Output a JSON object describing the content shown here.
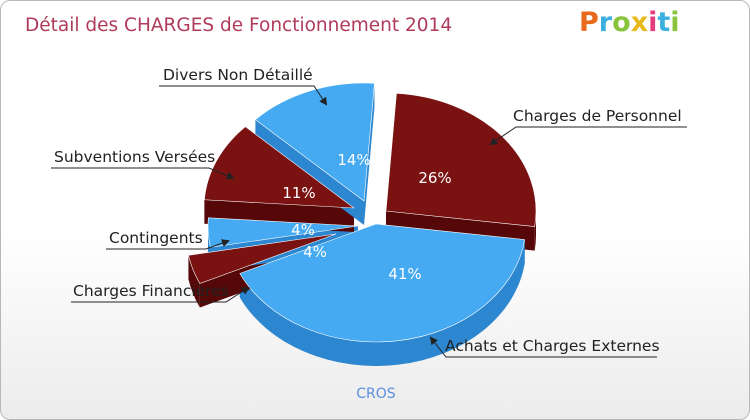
{
  "title": "Détail des CHARGES de Fonctionnement 2014",
  "logo": {
    "text": "Proxiti",
    "colors": [
      "#e86a1c",
      "#3bb0e0",
      "#8ac43f",
      "#e8b81c",
      "#e43c7c",
      "#3bb0e0",
      "#8ac43f"
    ]
  },
  "subtitle": "CROS",
  "colors": {
    "blue": "#45aaf2",
    "blue_side": "#2c86d0",
    "red": "#7a1212",
    "red_side": "#560808"
  },
  "chart_data": {
    "type": "pie",
    "title": "Détail des CHARGES de Fonctionnement 2014",
    "subtitle": "CROS",
    "slices": [
      {
        "label": "Charges de Personnel",
        "value": 26,
        "display": "26%",
        "color": "red"
      },
      {
        "label": "Achats et Charges Externes",
        "value": 41,
        "display": "41%",
        "color": "blue"
      },
      {
        "label": "Charges Financières",
        "value": 4,
        "display": "4%",
        "color": "red"
      },
      {
        "label": "Contingents",
        "value": 4,
        "display": "4%",
        "color": "blue"
      },
      {
        "label": "Subventions Versées",
        "value": 11,
        "display": "11%",
        "color": "red"
      },
      {
        "label": "Divers Non Détaillé",
        "value": 14,
        "display": "14%",
        "color": "blue"
      }
    ]
  }
}
